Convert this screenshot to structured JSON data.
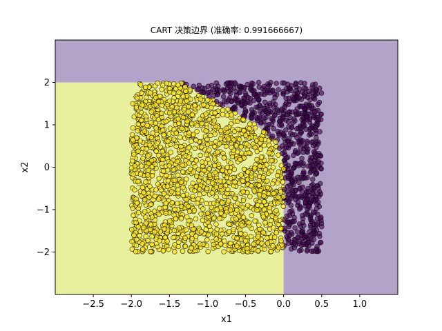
{
  "chart_data": {
    "type": "scatter",
    "title": "CART 决策边界 (准确率: 0.991666667)",
    "xlabel": "x1",
    "ylabel": "x2",
    "xlim": [
      -3.0,
      1.5
    ],
    "ylim": [
      -3.0,
      3.0
    ],
    "x_ticks": [
      -2.5,
      -2.0,
      -1.5,
      -1.0,
      -0.5,
      0.0,
      0.5,
      1.0
    ],
    "x_tick_labels": [
      "−2.5",
      "−2.0",
      "−1.5",
      "−1.0",
      "−0.5",
      "0.0",
      "0.5",
      "1.0"
    ],
    "y_ticks": [
      -2,
      -1,
      0,
      1,
      2
    ],
    "y_tick_labels": [
      "−2",
      "−1",
      "0",
      "1",
      "2"
    ],
    "grid": false,
    "legend": "none",
    "decision_regions": [
      {
        "class": 1,
        "color": "#e8f09e",
        "polygon": [
          [
            -3.0,
            -3.0
          ],
          [
            0.0,
            -3.0
          ],
          [
            0.0,
            0.15
          ],
          [
            -0.1,
            0.6
          ],
          [
            -0.4,
            1.05
          ],
          [
            -0.8,
            1.45
          ],
          [
            -1.1,
            1.75
          ],
          [
            -1.35,
            2.0
          ],
          [
            -3.0,
            2.0
          ]
        ]
      },
      {
        "class": 0,
        "color": "#b3a3c8",
        "polygon": "complement"
      }
    ],
    "series": [
      {
        "class": 0,
        "color": "#440154",
        "x_range": [
          -2.0,
          0.5
        ],
        "y_range": [
          -2.0,
          2.0
        ],
        "region": "outside class-1 boundary"
      },
      {
        "class": 1,
        "color": "#fde725",
        "x_range": [
          -2.0,
          0.0
        ],
        "y_range": [
          -2.0,
          2.0
        ],
        "region": "inside class-1 boundary"
      }
    ],
    "colors": {
      "class0_region": "#b3a3c8",
      "class1_region": "#e8f09e",
      "class0_point": "#440154",
      "class1_point": "#fde725"
    }
  }
}
